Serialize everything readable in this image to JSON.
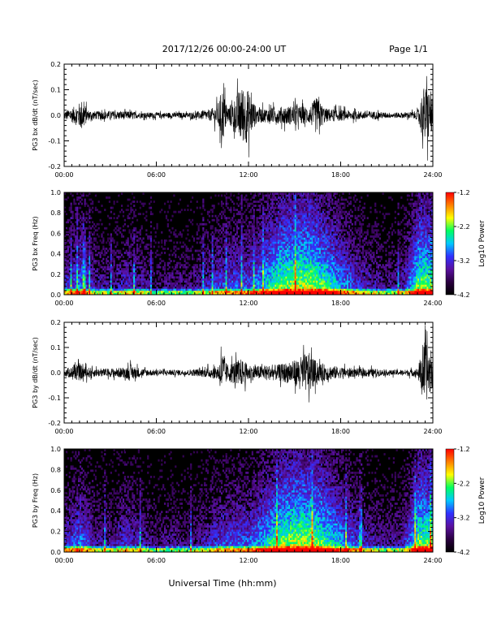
{
  "header": {
    "title": "2017/12/26  00:00-24:00 UT",
    "page": "Page 1/1"
  },
  "xlabel": "Universal Time (hh:mm)",
  "colors": {
    "trace": "#000000",
    "spectrogram_background": "#000000",
    "colormap": [
      "#000000",
      "#2a0040",
      "#5a10a0",
      "#3030ff",
      "#00c8ff",
      "#00ff60",
      "#ffff00",
      "#ff8000",
      "#ff0000"
    ]
  },
  "chart_data": [
    {
      "type": "line",
      "ylabel": "PG3 bx dB/dt (nT/sec)",
      "xticks": [
        "00:00",
        "06:00",
        "12:00",
        "18:00",
        "24:00"
      ],
      "xlim": [
        0,
        24
      ],
      "ylim": [
        -0.2,
        0.2
      ],
      "yticks": [
        "-0.2",
        "-0.1",
        "0.0",
        "0.1",
        "0.2"
      ],
      "x": [
        0,
        0.5,
        1.0,
        1.2,
        1.5,
        2.0,
        3.0,
        4.0,
        5.0,
        6.0,
        7.0,
        8.0,
        9.0,
        9.5,
        10.0,
        10.3,
        10.6,
        11.0,
        11.5,
        11.9,
        12.5,
        13.0,
        14.0,
        15.0,
        16.0,
        16.4,
        17.0,
        18.0,
        19.0,
        20.0,
        21.0,
        22.0,
        23.0,
        23.4,
        23.7,
        24.0
      ],
      "y_envelope": [
        0.03,
        0.05,
        0.09,
        0.12,
        0.04,
        0.03,
        0.03,
        0.03,
        0.02,
        0.02,
        0.02,
        0.02,
        0.03,
        0.04,
        0.08,
        0.2,
        0.06,
        0.1,
        0.2,
        0.2,
        0.06,
        0.05,
        0.06,
        0.07,
        0.06,
        0.13,
        0.05,
        0.04,
        0.03,
        0.03,
        0.02,
        0.02,
        0.03,
        0.2,
        0.2,
        0.1
      ]
    },
    {
      "type": "heatmap",
      "ylabel": "PG3 bx Freq (Hz)",
      "xticks": [
        "00:00",
        "06:00",
        "12:00",
        "18:00",
        "24:00"
      ],
      "xlim": [
        0,
        24
      ],
      "ylim": [
        0.0,
        1.0
      ],
      "yticks": [
        "0.0",
        "0.2",
        "0.4",
        "0.6",
        "0.8",
        "1.0"
      ],
      "colorbar": {
        "label": "Log10 Power",
        "ticks": [
          "-1.2",
          "-2.2",
          "-3.2",
          "-4.2"
        ],
        "range": [
          -4.2,
          -1.2
        ]
      },
      "activity_hours": [
        0,
        1,
        2,
        3,
        4,
        5,
        6,
        7,
        8,
        9,
        10,
        11,
        12,
        13,
        14,
        15,
        16,
        17,
        18,
        19,
        20,
        21,
        22,
        23
      ],
      "activity_level": [
        0.35,
        0.5,
        0.3,
        0.25,
        0.35,
        0.3,
        0.2,
        0.25,
        0.2,
        0.3,
        0.4,
        0.45,
        0.45,
        0.6,
        0.75,
        0.8,
        0.8,
        0.7,
        0.55,
        0.4,
        0.3,
        0.25,
        0.3,
        0.75
      ]
    },
    {
      "type": "line",
      "ylabel": "PG3 by dB/dt (nT/sec)",
      "xticks": [
        "00:00",
        "06:00",
        "12:00",
        "18:00",
        "24:00"
      ],
      "xlim": [
        0,
        24
      ],
      "ylim": [
        -0.2,
        0.2
      ],
      "yticks": [
        "-0.2",
        "-0.1",
        "0.0",
        "0.1",
        "0.2"
      ],
      "x": [
        0,
        0.5,
        1.0,
        1.2,
        1.5,
        2.0,
        3.0,
        4.0,
        4.3,
        5.0,
        6.0,
        7.0,
        8.0,
        9.0,
        10.0,
        10.3,
        10.6,
        11.0,
        11.5,
        12.0,
        12.5,
        13.0,
        14.0,
        15.0,
        15.9,
        16.5,
        17.0,
        18.0,
        19.0,
        20.0,
        21.0,
        22.0,
        23.0,
        23.4,
        23.7,
        24.0
      ],
      "y_envelope": [
        0.03,
        0.04,
        0.06,
        0.05,
        0.04,
        0.03,
        0.03,
        0.04,
        0.06,
        0.03,
        0.02,
        0.02,
        0.02,
        0.03,
        0.05,
        0.16,
        0.06,
        0.08,
        0.1,
        0.06,
        0.05,
        0.05,
        0.06,
        0.09,
        0.15,
        0.07,
        0.06,
        0.04,
        0.03,
        0.03,
        0.02,
        0.02,
        0.03,
        0.2,
        0.2,
        0.1
      ]
    },
    {
      "type": "heatmap",
      "ylabel": "PG3 by Freq (Hz)",
      "xticks": [
        "00:00",
        "06:00",
        "12:00",
        "18:00",
        "24:00"
      ],
      "xlim": [
        0,
        24
      ],
      "ylim": [
        0.0,
        1.0
      ],
      "yticks": [
        "0.0",
        "0.2",
        "0.4",
        "0.6",
        "0.8",
        "1.0"
      ],
      "colorbar": {
        "label": "Log10 Power",
        "ticks": [
          "-1.2",
          "-2.2",
          "-3.2",
          "-4.2"
        ],
        "range": [
          -4.2,
          -1.2
        ]
      },
      "activity_hours": [
        0,
        1,
        2,
        3,
        4,
        5,
        6,
        7,
        8,
        9,
        10,
        11,
        12,
        13,
        14,
        15,
        16,
        17,
        18,
        19,
        20,
        21,
        22,
        23
      ],
      "activity_level": [
        0.35,
        0.5,
        0.3,
        0.25,
        0.4,
        0.3,
        0.2,
        0.25,
        0.2,
        0.3,
        0.4,
        0.45,
        0.45,
        0.6,
        0.75,
        0.8,
        0.8,
        0.7,
        0.55,
        0.4,
        0.3,
        0.25,
        0.3,
        0.75
      ]
    }
  ]
}
